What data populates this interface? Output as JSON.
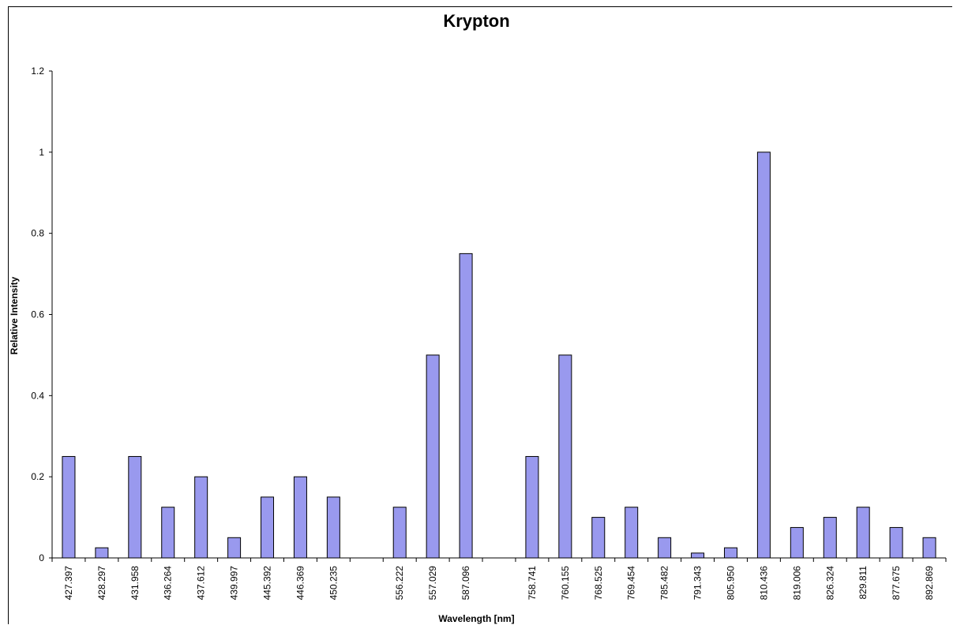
{
  "chart_data": {
    "type": "bar",
    "title": "Krypton",
    "xlabel": "Wavelength [nm]",
    "ylabel": "Relative Intensity",
    "ylim": [
      0,
      1.2
    ],
    "yticks": [
      "0",
      "0.2",
      "0.4",
      "0.6",
      "0.8",
      "1",
      "1.2"
    ],
    "categories": [
      "427.397",
      "428.297",
      "431.958",
      "436.264",
      "437.612",
      "439.997",
      "445.392",
      "446.369",
      "450.235",
      "",
      "556.222",
      "557.029",
      "587.096",
      "",
      "758.741",
      "760.155",
      "768.525",
      "769.454",
      "785.482",
      "791.343",
      "805.950",
      "810.436",
      "819.006",
      "826.324",
      "829.811",
      "877.675",
      "892.869"
    ],
    "values": [
      0.25,
      0.025,
      0.25,
      0.125,
      0.2,
      0.05,
      0.15,
      0.2,
      0.15,
      null,
      0.125,
      0.5,
      0.75,
      null,
      0.25,
      0.5,
      0.1,
      0.125,
      0.05,
      0.012,
      0.025,
      1.0,
      0.075,
      0.1,
      0.125,
      0.075,
      0.05
    ],
    "bar_color": "#9999ee",
    "grid": false,
    "legend": "none"
  }
}
